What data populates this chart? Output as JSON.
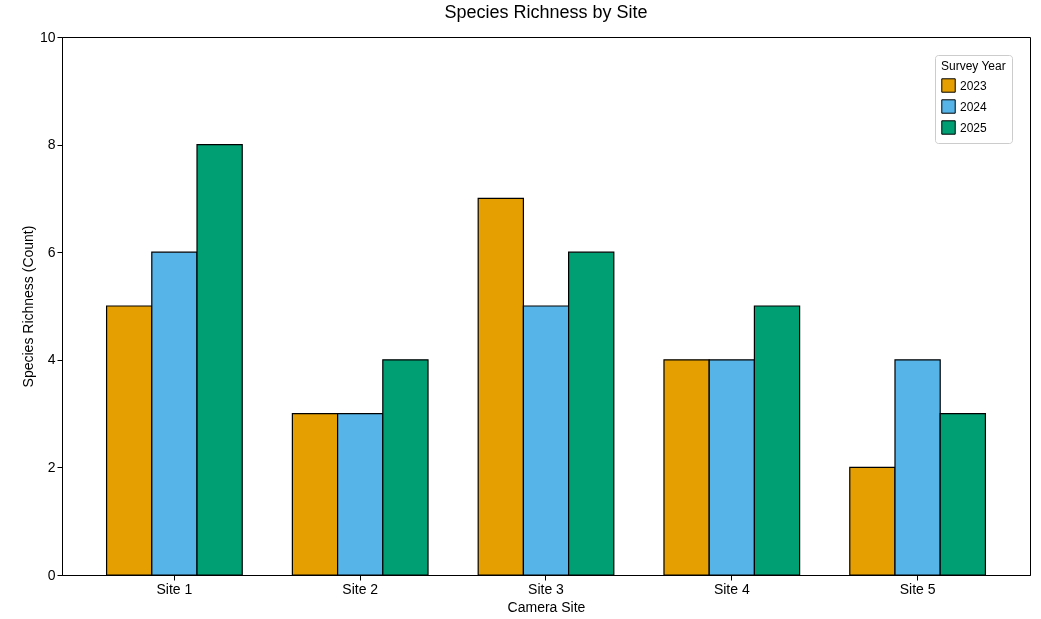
{
  "chart_data": {
    "type": "bar",
    "title": "Species Richness by Site",
    "xlabel": "Camera Site",
    "ylabel": "Species Richness (Count)",
    "legend_title": "Survey Year",
    "legend": "top right",
    "categories": [
      "Site 1",
      "Site 2",
      "Site 3",
      "Site 4",
      "Site 5"
    ],
    "series": [
      {
        "name": "2023",
        "color": "#e69f00",
        "values": [
          5,
          3,
          7,
          4,
          2
        ]
      },
      {
        "name": "2024",
        "color": "#56b4e9",
        "values": [
          6,
          3,
          5,
          4,
          4
        ]
      },
      {
        "name": "2025",
        "color": "#009e73",
        "values": [
          8,
          4,
          6,
          5,
          3
        ]
      }
    ],
    "ylim": [
      0,
      10
    ],
    "yticks": [
      0,
      2,
      4,
      6,
      8,
      10
    ]
  }
}
